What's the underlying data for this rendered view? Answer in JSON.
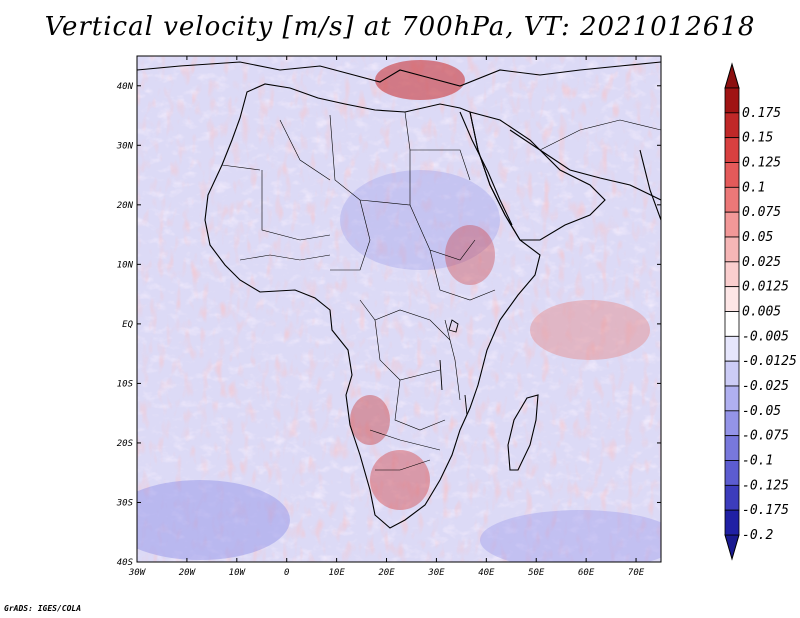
{
  "title": "Vertical velocity [m/s] at 700hPa, VT: 2021012618",
  "credit": "GrADS: IGES/COLA",
  "map": {
    "lon_range": [
      -30,
      75
    ],
    "lat_range": [
      -40,
      45
    ],
    "lon_ticks": [
      {
        "value": -30,
        "label": "30W"
      },
      {
        "value": -20,
        "label": "20W"
      },
      {
        "value": -10,
        "label": "10W"
      },
      {
        "value": 0,
        "label": "0"
      },
      {
        "value": 10,
        "label": "10E"
      },
      {
        "value": 20,
        "label": "20E"
      },
      {
        "value": 30,
        "label": "30E"
      },
      {
        "value": 40,
        "label": "40E"
      },
      {
        "value": 50,
        "label": "50E"
      },
      {
        "value": 60,
        "label": "60E"
      },
      {
        "value": 70,
        "label": "70E"
      }
    ],
    "lat_ticks": [
      {
        "value": 40,
        "label": "40N"
      },
      {
        "value": 30,
        "label": "30N"
      },
      {
        "value": 20,
        "label": "20N"
      },
      {
        "value": 10,
        "label": "10N"
      },
      {
        "value": 0,
        "label": "EQ"
      },
      {
        "value": -10,
        "label": "10S"
      },
      {
        "value": -20,
        "label": "20S"
      },
      {
        "value": -30,
        "label": "30S"
      },
      {
        "value": -40,
        "label": "40S"
      }
    ]
  },
  "colorbar": {
    "levels": [
      {
        "label": "0.175",
        "color": "#a01414"
      },
      {
        "label": "0.15",
        "color": "#c02828"
      },
      {
        "label": "0.125",
        "color": "#d84040"
      },
      {
        "label": "0.1",
        "color": "#e45a5a"
      },
      {
        "label": "0.075",
        "color": "#ec7878"
      },
      {
        "label": "0.05",
        "color": "#f29898"
      },
      {
        "label": "0.025",
        "color": "#f6b6b6"
      },
      {
        "label": "0.0125",
        "color": "#facece"
      },
      {
        "label": "0.005",
        "color": "#fde6e6"
      },
      {
        "label": "-0.005",
        "color": "#ffffff"
      },
      {
        "label": "-0.0125",
        "color": "#e6e6fc"
      },
      {
        "label": "-0.025",
        "color": "#ccccf6"
      },
      {
        "label": "-0.05",
        "color": "#b0b0f0"
      },
      {
        "label": "-0.075",
        "color": "#9494e8"
      },
      {
        "label": "-0.1",
        "color": "#7878dc"
      },
      {
        "label": "-0.125",
        "color": "#5c5cd0"
      },
      {
        "label": "-0.175",
        "color": "#3c3cbc"
      },
      {
        "label": "-0.2",
        "color": "#2020a4"
      }
    ],
    "top_arrow_color": "#8c1010",
    "bottom_arrow_color": "#1a1a90"
  }
}
